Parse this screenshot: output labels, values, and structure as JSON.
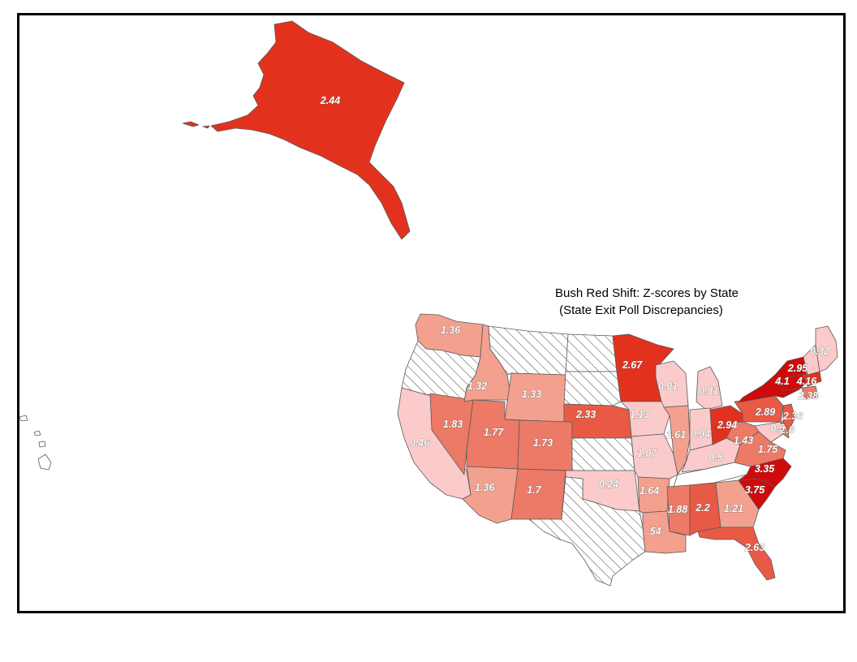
{
  "map": {
    "title_line1": "Bush Red Shift:  Z-scores by State",
    "title_line2": "(State Exit Poll Discrepancies)"
  },
  "colors": {
    "level_1": "#fbcaca",
    "level_2": "#f3a08f",
    "level_3": "#ec7a66",
    "level_4": "#e85a45",
    "level_5": "#e2321e",
    "level_6": "#cf0a0a",
    "no_data": "hatched",
    "outline": "#5a5a5a"
  },
  "states": [
    {
      "name": "AK",
      "value": "2.44"
    },
    {
      "name": "WA",
      "value": "1.36"
    },
    {
      "name": "OR",
      "value": ""
    },
    {
      "name": "CA",
      "value": "0.46"
    },
    {
      "name": "NV",
      "value": "1.83"
    },
    {
      "name": "ID",
      "value": "1.32"
    },
    {
      "name": "MT",
      "value": ""
    },
    {
      "name": "WY",
      "value": "1.33"
    },
    {
      "name": "UT",
      "value": "1.77"
    },
    {
      "name": "AZ",
      "value": "1.36"
    },
    {
      "name": "CO",
      "value": "1.73"
    },
    {
      "name": "NM",
      "value": "1.7"
    },
    {
      "name": "ND",
      "value": ""
    },
    {
      "name": "SD",
      "value": ""
    },
    {
      "name": "NE",
      "value": "2.33"
    },
    {
      "name": "KS",
      "value": ""
    },
    {
      "name": "OK",
      "value": "0.24"
    },
    {
      "name": "TX",
      "value": ""
    },
    {
      "name": "MN",
      "value": "2.67"
    },
    {
      "name": "IA",
      "value": "1.13"
    },
    {
      "name": "MO",
      "value": "1.07"
    },
    {
      "name": "AR",
      "value": "1.64"
    },
    {
      "name": "LA",
      "value": ".54"
    },
    {
      "name": "WI",
      "value": "0.01"
    },
    {
      "name": "MI",
      "value": "0.81"
    },
    {
      "name": "IL",
      "value": "1.61"
    },
    {
      "name": "IN",
      "value": "0.94"
    },
    {
      "name": "KY",
      "value": "0.5"
    },
    {
      "name": "TN",
      "value": ""
    },
    {
      "name": "MS",
      "value": "1.88"
    },
    {
      "name": "AL",
      "value": "2.2"
    },
    {
      "name": "GA",
      "value": "1.21"
    },
    {
      "name": "FL",
      "value": "2.63"
    },
    {
      "name": "SC",
      "value": "3.75"
    },
    {
      "name": "NC",
      "value": "3.35"
    },
    {
      "name": "VA",
      "value": "1.75"
    },
    {
      "name": "WV",
      "value": "1.43"
    },
    {
      "name": "OH",
      "value": "2.94"
    },
    {
      "name": "PA",
      "value": "2.89"
    },
    {
      "name": "NY",
      "value": "2.95"
    },
    {
      "name": "NJ",
      "value": "2.36"
    },
    {
      "name": "DE",
      "value": "2.6"
    },
    {
      "name": "MD",
      "value": "0.5"
    },
    {
      "name": "CT",
      "value": "4.1"
    },
    {
      "name": "MA",
      "value": "4.16"
    },
    {
      "name": "RI",
      "value": "2.38"
    },
    {
      "name": "ME",
      "value": "0.32"
    },
    {
      "name": "HI",
      "value": ""
    }
  ]
}
